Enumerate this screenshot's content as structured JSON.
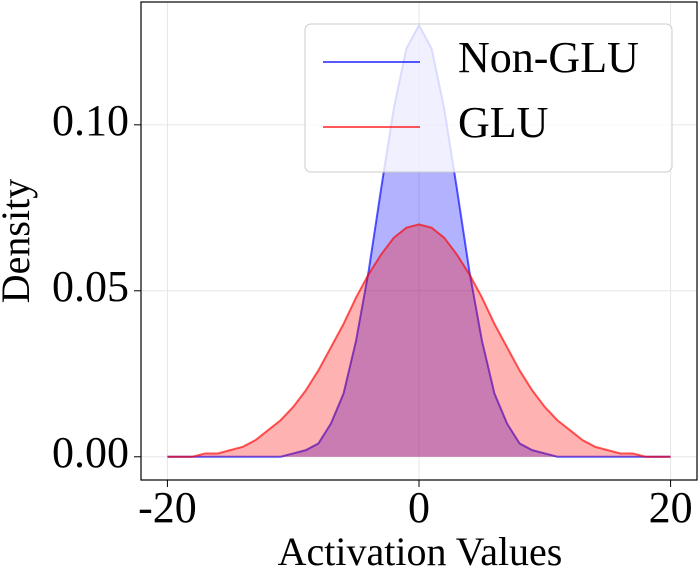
{
  "chart_data": {
    "type": "density",
    "x_label": "Activation Values",
    "y_label": "Density",
    "x": [
      -20,
      -19,
      -18,
      -17,
      -16,
      -15,
      -14,
      -13,
      -12,
      -11,
      -10,
      -9,
      -8,
      -7,
      -6,
      -5,
      -4,
      -3,
      -2,
      -1,
      0,
      1,
      2,
      3,
      4,
      5,
      6,
      7,
      8,
      9,
      10,
      11,
      12,
      13,
      14,
      15,
      16,
      17,
      18,
      19,
      20
    ],
    "series": [
      {
        "name": "Non-GLU",
        "color": "#0000ff",
        "values": [
          0,
          0,
          0,
          0,
          0,
          0,
          0,
          0,
          0,
          0,
          0.001,
          0.002,
          0.004,
          0.01,
          0.019,
          0.035,
          0.056,
          0.081,
          0.105,
          0.123,
          0.13,
          0.123,
          0.105,
          0.081,
          0.056,
          0.035,
          0.019,
          0.01,
          0.004,
          0.002,
          0.001,
          0,
          0,
          0,
          0,
          0,
          0,
          0,
          0,
          0,
          0
        ]
      },
      {
        "name": "GLU",
        "color": "#ff0000",
        "values": [
          0,
          0,
          0,
          0.001,
          0.001,
          0.002,
          0.003,
          0.005,
          0.008,
          0.011,
          0.015,
          0.02,
          0.026,
          0.033,
          0.04,
          0.048,
          0.055,
          0.061,
          0.066,
          0.069,
          0.07,
          0.069,
          0.066,
          0.061,
          0.055,
          0.048,
          0.04,
          0.033,
          0.026,
          0.02,
          0.015,
          0.011,
          0.008,
          0.005,
          0.003,
          0.002,
          0.001,
          0.001,
          0,
          0,
          0
        ]
      }
    ],
    "xlim": [
      -22.1,
      22.1
    ],
    "ylim": [
      -0.007,
      0.137
    ],
    "xticks": [
      -20,
      0,
      20
    ],
    "yticks": [
      {
        "value": 0,
        "label": "0.00"
      },
      0.05,
      {
        "value": 0.1,
        "label": "0.10"
      }
    ],
    "grid": true,
    "legend": "upper right"
  }
}
